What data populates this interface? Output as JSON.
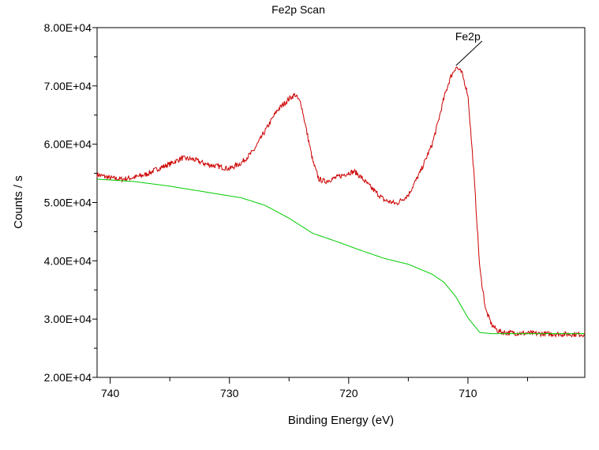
{
  "chart_data": {
    "type": "line",
    "title": "Fe2p Scan",
    "xlabel": "Binding Energy (eV)",
    "ylabel": "Counts / s",
    "xlim": [
      741.1,
      700.2
    ],
    "ylim": [
      20000,
      80000
    ],
    "x_reversed": true,
    "x_ticks": [
      740,
      730,
      720,
      710
    ],
    "x_tick_labels": [
      "740",
      "730",
      "720",
      "710"
    ],
    "y_ticks": [
      20000,
      30000,
      40000,
      50000,
      60000,
      70000,
      80000
    ],
    "y_tick_labels": [
      "2.00E+04",
      "3.00E+04",
      "4.00E+04",
      "5.00E+04",
      "6.00E+04",
      "7.00E+04",
      "8.00E+04"
    ],
    "grid": false,
    "annotations": [
      {
        "text": "Fe2p",
        "x": 711.0,
        "y": 73500
      }
    ],
    "series": [
      {
        "color": "#cc0000",
        "x": [
          741.1,
          740.0,
          739.0,
          738.0,
          737.0,
          736.0,
          735.0,
          734.0,
          733.0,
          732.0,
          731.0,
          730.0,
          729.0,
          728.0,
          727.0,
          726.0,
          725.0,
          724.5,
          724.0,
          723.5,
          723.0,
          722.5,
          722.0,
          721.0,
          720.0,
          719.5,
          719.0,
          718.0,
          717.0,
          716.0,
          715.0,
          714.0,
          713.0,
          712.5,
          712.0,
          711.5,
          711.0,
          710.5,
          710.0,
          709.5,
          709.0,
          708.5,
          708.0,
          707.5,
          707.0,
          706.0,
          704.0,
          702.0,
          700.2
        ],
        "values": [
          54800,
          54200,
          54000,
          54300,
          54800,
          55800,
          56600,
          57600,
          57400,
          56600,
          56200,
          55800,
          56800,
          58800,
          62300,
          65800,
          67800,
          68500,
          67000,
          62000,
          57000,
          54000,
          53600,
          54300,
          55100,
          55300,
          54400,
          52300,
          50400,
          49800,
          51300,
          55200,
          60000,
          63800,
          68000,
          71300,
          73300,
          72200,
          68500,
          55000,
          38500,
          31500,
          29000,
          28000,
          27700,
          27600,
          27500,
          27400,
          27400
        ]
      },
      {
        "color": "#00cc00",
        "x": [
          741.1,
          738.0,
          735.0,
          732.0,
          729.0,
          727.0,
          725.0,
          723.0,
          721.0,
          719.0,
          717.0,
          715.0,
          713.0,
          712.0,
          711.0,
          710.0,
          709.0,
          708.0,
          707.0,
          705.0,
          703.0,
          700.2
        ],
        "values": [
          54000,
          53600,
          52800,
          51800,
          50800,
          49500,
          47300,
          44700,
          43300,
          41800,
          40400,
          39400,
          37700,
          36300,
          33800,
          30200,
          27700,
          27500,
          27500,
          27500,
          27500,
          27500
        ]
      }
    ]
  }
}
